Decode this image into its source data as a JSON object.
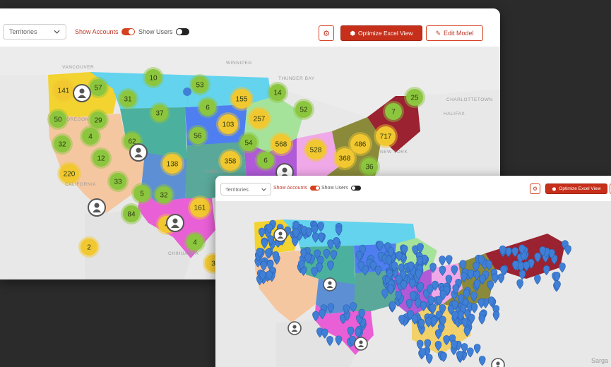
{
  "back_panel": {
    "territory_select": "Territories",
    "show_accounts": "Show Accounts",
    "show_users": "Show Users",
    "optimize_button": "Optimize Excel View",
    "edit_button": "Edit Model",
    "map_labels": {
      "vancouver": "VANCOUVER",
      "winnipeg": "WINNIPEG",
      "thunder_bay": "THUNDER BAY",
      "charlottetown": "CHARLOTTETOWN",
      "halifax": "HALIFAX",
      "new_york": "NEW YORK",
      "california": "CALIFORNIA",
      "chihuahua": "CHIHUAHUA",
      "oregon": "OREGON",
      "kansas": "KANSAS"
    },
    "clusters": [
      {
        "label": "141",
        "color": "yellow"
      },
      {
        "label": "57",
        "color": "green"
      },
      {
        "label": "10",
        "color": "green"
      },
      {
        "label": "53",
        "color": "green"
      },
      {
        "label": "31",
        "color": "green"
      },
      {
        "label": "155",
        "color": "yellow"
      },
      {
        "label": "14",
        "color": "green"
      },
      {
        "label": "50",
        "color": "green"
      },
      {
        "label": "29",
        "color": "green"
      },
      {
        "label": "37",
        "color": "green"
      },
      {
        "label": "6",
        "color": "green"
      },
      {
        "label": "103",
        "color": "yellow"
      },
      {
        "label": "257",
        "color": "yellow"
      },
      {
        "label": "52",
        "color": "green"
      },
      {
        "label": "25",
        "color": "green"
      },
      {
        "label": "7",
        "color": "green"
      },
      {
        "label": "4",
        "color": "green"
      },
      {
        "label": "32",
        "color": "green"
      },
      {
        "label": "62",
        "color": "green"
      },
      {
        "label": "56",
        "color": "green"
      },
      {
        "label": "54",
        "color": "green"
      },
      {
        "label": "568",
        "color": "yellow"
      },
      {
        "label": "486",
        "color": "yellow"
      },
      {
        "label": "717",
        "color": "yellow"
      },
      {
        "label": "12",
        "color": "green"
      },
      {
        "label": "138",
        "color": "yellow"
      },
      {
        "label": "358",
        "color": "yellow"
      },
      {
        "label": "6",
        "color": "green"
      },
      {
        "label": "528",
        "color": "yellow"
      },
      {
        "label": "368",
        "color": "yellow"
      },
      {
        "label": "220",
        "color": "yellow"
      },
      {
        "label": "33",
        "color": "green"
      },
      {
        "label": "36",
        "color": "green"
      },
      {
        "label": "5",
        "color": "green"
      },
      {
        "label": "32",
        "color": "green"
      },
      {
        "label": "161",
        "color": "yellow"
      },
      {
        "label": "84",
        "color": "green"
      },
      {
        "label": "4",
        "color": "yellow"
      },
      {
        "label": "2",
        "color": "yellow"
      },
      {
        "label": "4",
        "color": "green"
      },
      {
        "label": "3",
        "color": "yellow"
      }
    ]
  },
  "front_panel": {
    "territory_select": "Territories",
    "show_accounts": "Show Accounts",
    "show_users": "Show Users",
    "optimize_button": "Optimize Excel View",
    "attribution": "Sarga"
  },
  "colors": {
    "accent": "#c62f19",
    "cluster_green": "#8cc63f",
    "cluster_yellow": "#f2c830",
    "marker_blue": "#3f7fd6",
    "background": "#2b2b2b"
  }
}
